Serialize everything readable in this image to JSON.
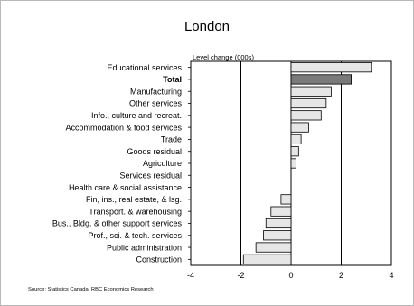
{
  "chart_data": {
    "type": "bar",
    "orientation": "horizontal",
    "title": "London",
    "ylabel": "Level change (000s)",
    "categories": [
      "Educational services",
      "Total",
      "Manufacturing",
      "Other services",
      "Info., culture and recreat.",
      "Accommodation & food services",
      "Trade",
      "Goods residual",
      "Agriculture",
      "Services residual",
      "Health care & social assistance",
      "Fin, ins., real estate, & lsg.",
      "Transport. & warehousing",
      "Bus., Bldg. & other support services",
      "Prof., sci. & tech. services",
      "Public administration",
      "Construction"
    ],
    "values": [
      3.2,
      2.4,
      1.6,
      1.4,
      1.2,
      0.7,
      0.4,
      0.3,
      0.2,
      0.0,
      0.0,
      -0.4,
      -0.8,
      -1.0,
      -1.1,
      -1.4,
      -1.9
    ],
    "highlight_category": "Total",
    "xlim": [
      -4,
      4
    ],
    "xticks": [
      "-4",
      "-2",
      "0",
      "2",
      "4"
    ],
    "grid": "vertical",
    "bar_color": "#e6e6e6",
    "highlight_color": "#7a7a7a",
    "source": "Source: Statistics Canada, RBC Economics Research"
  }
}
